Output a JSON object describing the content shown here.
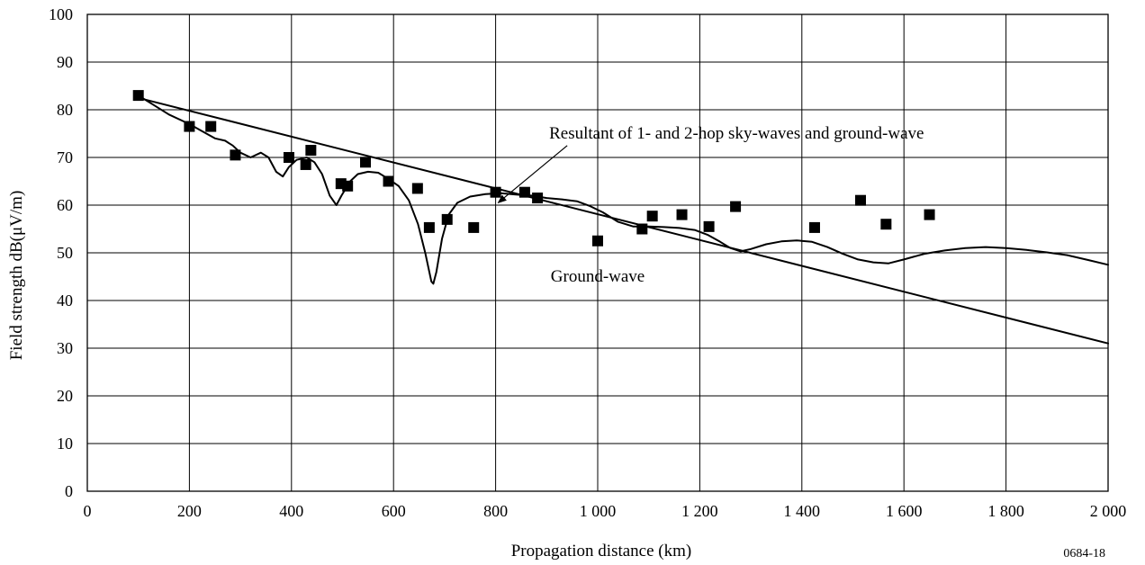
{
  "chart_data": {
    "type": "line",
    "title": "",
    "xlabel": "Propagation distance (km)",
    "ylabel": "Field strength dB(μV/m)",
    "xlim": [
      0,
      2000
    ],
    "ylim": [
      0,
      100
    ],
    "x_ticks": [
      0,
      200,
      400,
      600,
      800,
      1000,
      1200,
      1400,
      1600,
      1800,
      2000
    ],
    "x_tick_labels": [
      "0",
      "200",
      "400",
      "600",
      "800",
      "1 000",
      "1 200",
      "1 400",
      "1 600",
      "1 800",
      "2 000"
    ],
    "y_ticks": [
      0,
      10,
      20,
      30,
      40,
      50,
      60,
      70,
      80,
      90,
      100
    ],
    "y_tick_labels": [
      "0",
      "10",
      "20",
      "30",
      "40",
      "50",
      "60",
      "70",
      "80",
      "90",
      "100"
    ],
    "grid": true,
    "figure_code": "0684-18",
    "series": [
      {
        "kind": "line",
        "color": "#000000",
        "points": [
          [
            100,
            82.5
          ],
          [
            2000,
            31
          ]
        ]
      },
      {
        "kind": "line",
        "color": "#000000",
        "points": [
          [
            100,
            83
          ],
          [
            130,
            81
          ],
          [
            160,
            79
          ],
          [
            200,
            77
          ],
          [
            225,
            75.5
          ],
          [
            250,
            74
          ],
          [
            270,
            73.5
          ],
          [
            285,
            72.5
          ],
          [
            300,
            71
          ],
          [
            320,
            70
          ],
          [
            340,
            71
          ],
          [
            355,
            70
          ],
          [
            370,
            67
          ],
          [
            383,
            66
          ],
          [
            395,
            68
          ],
          [
            410,
            69.5
          ],
          [
            430,
            70
          ],
          [
            445,
            69
          ],
          [
            460,
            66.5
          ],
          [
            475,
            62
          ],
          [
            488,
            60
          ],
          [
            498,
            62
          ],
          [
            515,
            65
          ],
          [
            530,
            66.5
          ],
          [
            550,
            67
          ],
          [
            570,
            66.8
          ],
          [
            590,
            65.5
          ],
          [
            610,
            64
          ],
          [
            630,
            61
          ],
          [
            648,
            56
          ],
          [
            662,
            50
          ],
          [
            674,
            44
          ],
          [
            678,
            43.5
          ],
          [
            684,
            46
          ],
          [
            695,
            53
          ],
          [
            708,
            58
          ],
          [
            725,
            60.5
          ],
          [
            750,
            61.8
          ],
          [
            780,
            62.3
          ],
          [
            810,
            62.5
          ],
          [
            840,
            62.2
          ],
          [
            870,
            62
          ],
          [
            900,
            61.5
          ],
          [
            930,
            61.2
          ],
          [
            960,
            60.8
          ],
          [
            985,
            59.8
          ],
          [
            1010,
            58.5
          ],
          [
            1040,
            56.5
          ],
          [
            1070,
            55.5
          ],
          [
            1100,
            55.5
          ],
          [
            1130,
            55.4
          ],
          [
            1160,
            55.2
          ],
          [
            1190,
            54.8
          ],
          [
            1215,
            53.8
          ],
          [
            1240,
            52.3
          ],
          [
            1260,
            51
          ],
          [
            1280,
            50.3
          ],
          [
            1300,
            50.8
          ],
          [
            1330,
            51.8
          ],
          [
            1360,
            52.4
          ],
          [
            1390,
            52.6
          ],
          [
            1420,
            52.3
          ],
          [
            1450,
            51.2
          ],
          [
            1480,
            49.8
          ],
          [
            1510,
            48.6
          ],
          [
            1540,
            48
          ],
          [
            1570,
            47.8
          ],
          [
            1600,
            48.6
          ],
          [
            1640,
            49.8
          ],
          [
            1680,
            50.5
          ],
          [
            1720,
            51
          ],
          [
            1760,
            51.2
          ],
          [
            1800,
            51
          ],
          [
            1840,
            50.6
          ],
          [
            1880,
            50.1
          ],
          [
            1920,
            49.5
          ],
          [
            1960,
            48.5
          ],
          [
            2000,
            47.5
          ]
        ]
      },
      {
        "kind": "scatter",
        "marker": "square",
        "color": "#000000",
        "points": [
          [
            100,
            83
          ],
          [
            200,
            76.5
          ],
          [
            242,
            76.5
          ],
          [
            290,
            70.5
          ],
          [
            395,
            70
          ],
          [
            428,
            68.5
          ],
          [
            438,
            71.5
          ],
          [
            497,
            64.5
          ],
          [
            510,
            64
          ],
          [
            545,
            69
          ],
          [
            590,
            65
          ],
          [
            647,
            63.5
          ],
          [
            670,
            55.3
          ],
          [
            705,
            57
          ],
          [
            757,
            55.3
          ],
          [
            800,
            62.7
          ],
          [
            857,
            62.7
          ],
          [
            882,
            61.5
          ],
          [
            1000,
            52.5
          ],
          [
            1087,
            55
          ],
          [
            1107,
            57.7
          ],
          [
            1165,
            58
          ],
          [
            1218,
            55.5
          ],
          [
            1270,
            59.7
          ],
          [
            1425,
            55.3
          ],
          [
            1515,
            61
          ],
          [
            1565,
            56
          ],
          [
            1650,
            58
          ]
        ]
      }
    ],
    "annotations": [
      {
        "text": "Resultant of 1- and 2-hop sky-waves and ground-wave",
        "x": 805,
        "y": 60.5,
        "label_at": [
          905,
          74
        ]
      },
      {
        "text": "Ground-wave",
        "x": 1000,
        "y": 44
      }
    ]
  }
}
